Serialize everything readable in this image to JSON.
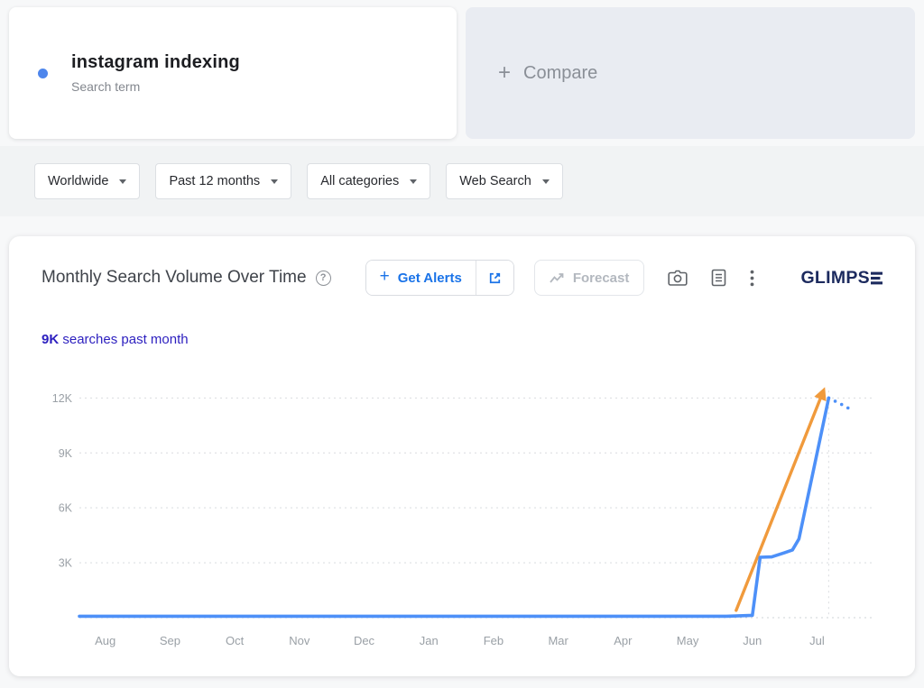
{
  "term_card": {
    "title": "instagram indexing",
    "subtitle": "Search term",
    "dot_color": "#4e86ec"
  },
  "compare_card": {
    "plus": "+",
    "label": "Compare"
  },
  "filters": [
    {
      "id": "region",
      "label": "Worldwide"
    },
    {
      "id": "time",
      "label": "Past 12 months"
    },
    {
      "id": "category",
      "label": "All categories"
    },
    {
      "id": "search_type",
      "label": "Web Search"
    }
  ],
  "chart_header": {
    "title": "Monthly Search Volume Over Time",
    "help": "?",
    "get_alerts": {
      "plus": "+",
      "label": "Get Alerts"
    },
    "forecast_label": "Forecast",
    "logo_text": "GLIMPS"
  },
  "stats": {
    "count": "9K",
    "caption": "searches past month"
  },
  "colors": {
    "accent_blue": "#1a73e8",
    "line_blue": "#4d90f8",
    "arrow_orange": "#f09a3c",
    "logo_navy": "#1c2a5e",
    "stats_indigo": "#2c1fbf",
    "axis_gray": "#9aa0a6",
    "filter_strip": "#f1f3f4",
    "compare_bg": "#e9ecf2"
  },
  "chart_data": {
    "type": "line",
    "title": "Monthly Search Volume Over Time",
    "unit": "monthly searches",
    "categories": [
      "Aug",
      "Sep",
      "Oct",
      "Nov",
      "Dec",
      "Jan",
      "Feb",
      "Mar",
      "Apr",
      "May",
      "Jun",
      "Jul"
    ],
    "x_range": [
      -0.4,
      11.9
    ],
    "ylim": [
      0,
      13200
    ],
    "yticks": [
      3000,
      6000,
      9000,
      12000
    ],
    "ytick_labels": [
      "3K",
      "6K",
      "9K",
      "12K"
    ],
    "grid": "dotted-horizontal",
    "legend": "none",
    "series": [
      {
        "name": "instagram indexing monthly search volume",
        "color": "#4d90f8",
        "x": [
          -0.4,
          1,
          2,
          3,
          4,
          5,
          6,
          7,
          8,
          9,
          9.6,
          10.0,
          10.12,
          10.3,
          10.5,
          10.62,
          10.72,
          11.18
        ],
        "values": [
          80,
          80,
          80,
          80,
          80,
          80,
          80,
          80,
          80,
          80,
          80,
          130,
          3300,
          3320,
          3550,
          3700,
          4300,
          12000
        ]
      }
    ],
    "forecast": {
      "style": "dotted",
      "x": [
        11.38,
        11.56
      ],
      "values": [
        11650,
        11300
      ]
    },
    "now_line_x": 11.18,
    "annotation_arrow": {
      "color": "#f09a3c",
      "x0": 9.75,
      "y0": 400,
      "x1": 11.1,
      "y1": 12400
    }
  }
}
